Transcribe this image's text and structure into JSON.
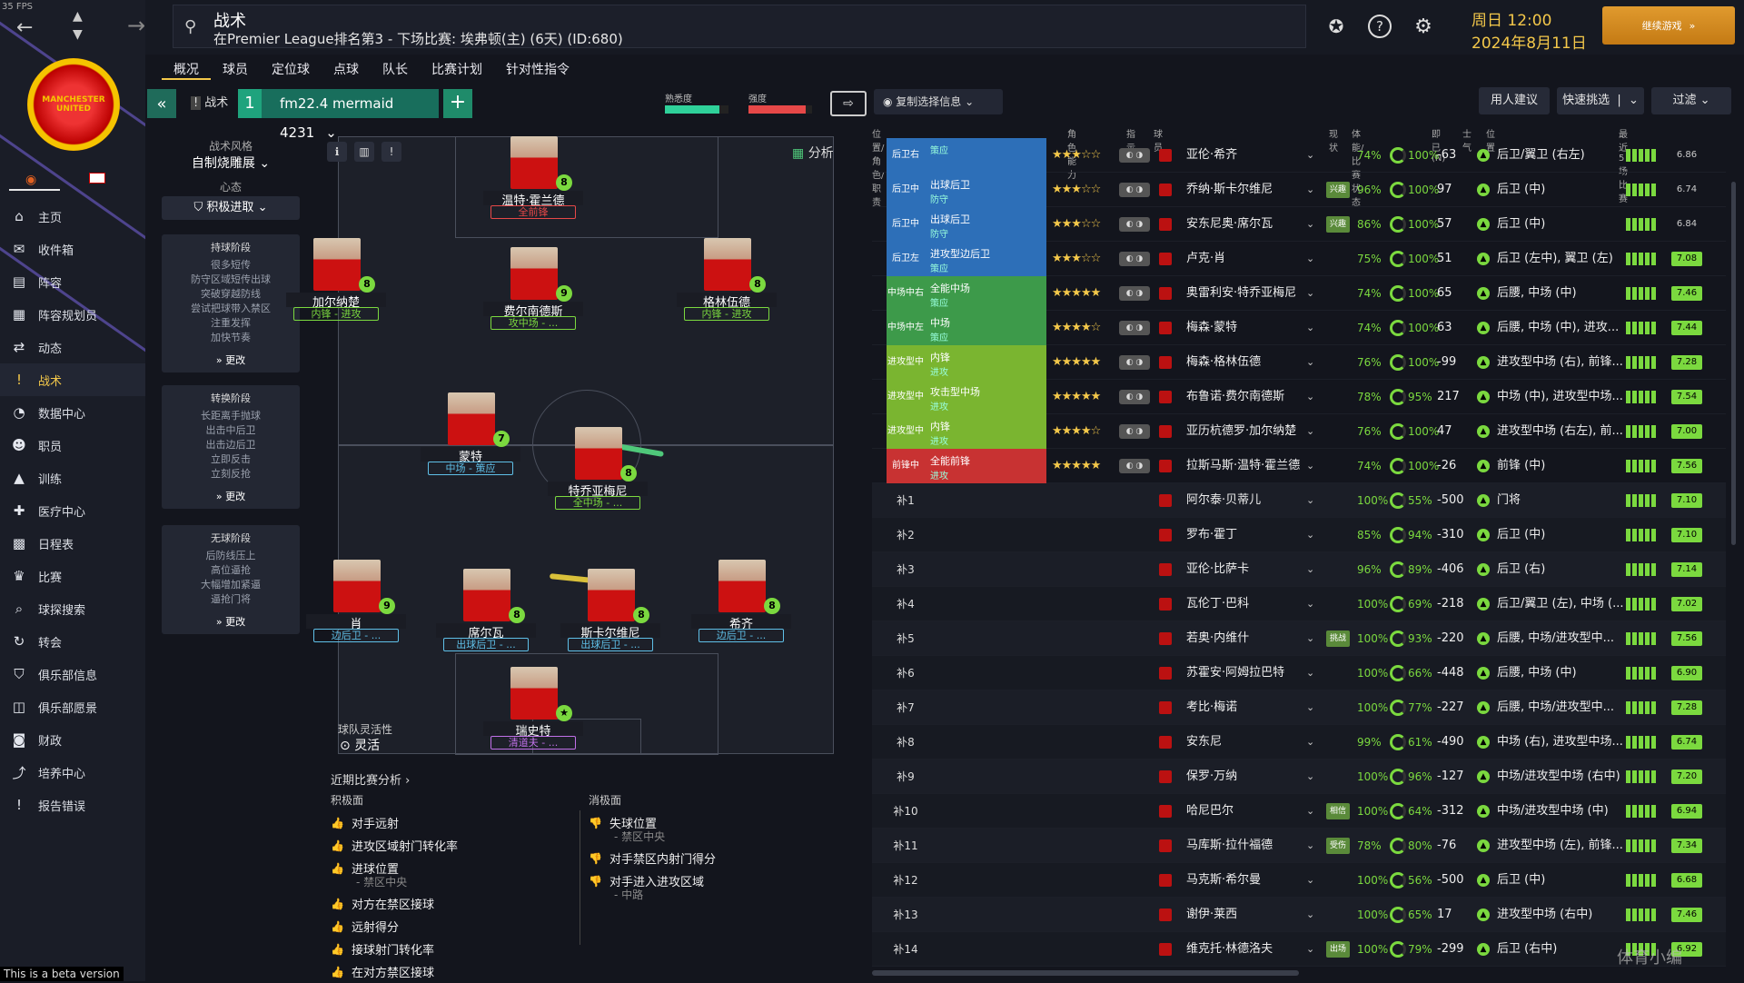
{
  "fps": "35 FPS",
  "beta": "This is a beta version",
  "sidebar": {
    "items": [
      {
        "label": "主页",
        "icon": "home-icon",
        "glyph": "⌂"
      },
      {
        "label": "收件箱",
        "icon": "inbox-icon",
        "glyph": "✉"
      },
      {
        "label": "阵容",
        "icon": "squad-icon",
        "glyph": "▤"
      },
      {
        "label": "阵容规划员",
        "icon": "planner-icon",
        "glyph": "▦"
      },
      {
        "label": "动态",
        "icon": "dynamics-icon",
        "glyph": "⇄"
      },
      {
        "label": "战术",
        "icon": "tactics-icon",
        "glyph": "!"
      },
      {
        "label": "数据中心",
        "icon": "data-icon",
        "glyph": "◔"
      },
      {
        "label": "职员",
        "icon": "staff-icon",
        "glyph": "☻"
      },
      {
        "label": "训练",
        "icon": "training-icon",
        "glyph": "▲"
      },
      {
        "label": "医疗中心",
        "icon": "medical-icon",
        "glyph": "✚"
      },
      {
        "label": "日程表",
        "icon": "calendar-icon",
        "glyph": "▩"
      },
      {
        "label": "比赛",
        "icon": "trophy-icon",
        "glyph": "♛"
      },
      {
        "label": "球探搜索",
        "icon": "scout-icon",
        "glyph": "⌕"
      },
      {
        "label": "转会",
        "icon": "transfer-icon",
        "glyph": "↻"
      },
      {
        "label": "俱乐部信息",
        "icon": "club-info-icon",
        "glyph": "⛉"
      },
      {
        "label": "俱乐部愿景",
        "icon": "vision-icon",
        "glyph": "◫"
      },
      {
        "label": "财政",
        "icon": "finance-icon",
        "glyph": "◙"
      },
      {
        "label": "培养中心",
        "icon": "development-icon",
        "glyph": "⤴"
      },
      {
        "label": "报告错误",
        "icon": "bug-icon",
        "glyph": "!"
      }
    ],
    "crest": "MANCHESTER UNITED"
  },
  "topbar": {
    "title": "战术",
    "subtitle": "在Premier League排名第3 - 下场比赛: 埃弗顿(主) (6天) (ID:680)",
    "day_time": "周日 12:00",
    "date": "2024年8月11日",
    "continue": "继续游戏"
  },
  "tabs": [
    "概况",
    "球员",
    "定位球",
    "点球",
    "队长",
    "比赛计划",
    "针对性指令"
  ],
  "toolbar": {
    "tactic_label": "战术",
    "slot": "1",
    "tactic_name": "fm22.4 mermaid 4231",
    "familiarity_label": "熟悉度",
    "familiarity_value": 0.85,
    "intensity_label": "强度",
    "intensity_value": 0.9,
    "copy": "复制选择信息",
    "advice": "用人建议",
    "quick": "快速挑选",
    "filter": "过滤"
  },
  "tactic_panel": {
    "style_label": "战术风格",
    "style_value": "自制烧雕展",
    "mentality_label": "心态",
    "mentality_value": "积极进取",
    "phases": [
      {
        "title": "持球阶段",
        "items": [
          "很多短传",
          "防守区域短传出球",
          "突破穿越防线",
          "尝试把球带入禁区",
          "注重发挥",
          "加快节奏"
        ],
        "more": "更改"
      },
      {
        "title": "转换阶段",
        "items": [
          "长距离手抛球",
          "出击中后卫",
          "出击边后卫",
          "立即反击",
          "立刻反抢"
        ],
        "more": "更改"
      },
      {
        "title": "无球阶段",
        "items": [
          "后防线压上",
          "高位逼抢",
          "大幅增加紧逼",
          "逼抢门将"
        ],
        "more": "更改"
      }
    ]
  },
  "pitch": {
    "analysis": "分析",
    "flex_label": "球队灵活性",
    "flex_value": "灵活",
    "players": [
      {
        "name": "温特·霍兰德",
        "role": "全前锋",
        "rating": "8",
        "color": "#e64848"
      },
      {
        "name": "加尔纳楚",
        "role": "内锋 - 进攻",
        "rating": "8",
        "color": "#7bd93f"
      },
      {
        "name": "费尔南德斯",
        "role": "攻中场 - ...",
        "rating": "9",
        "color": "#7bd93f"
      },
      {
        "name": "格林伍德",
        "role": "内锋 - 进攻",
        "rating": "8",
        "color": "#7bd93f"
      },
      {
        "name": "蒙特",
        "role": "中场 - 策应",
        "rating": "7",
        "color": "#5fc0e8"
      },
      {
        "name": "特乔亚梅尼",
        "role": "全中场 - ...",
        "rating": "8",
        "color": "#7bd93f"
      },
      {
        "name": "肖",
        "role": "边后卫 - ...",
        "rating": "9",
        "color": "#5fc0e8"
      },
      {
        "name": "席尔瓦",
        "role": "出球后卫 - ...",
        "rating": "8",
        "color": "#5fc0e8"
      },
      {
        "name": "斯卡尔维尼",
        "role": "出球后卫 - ...",
        "rating": "8",
        "color": "#5fc0e8"
      },
      {
        "name": "希齐",
        "role": "边后卫 - ...",
        "rating": "8",
        "color": "#5fc0e8"
      },
      {
        "name": "瑞史特",
        "role": "清道夫 - ...",
        "rating": "★",
        "color": "#c070e8"
      }
    ]
  },
  "analysis": {
    "title": "近期比赛分析",
    "positive_label": "积极面",
    "negative_label": "消极面",
    "positive": [
      {
        "t": "对手远射",
        "s": ""
      },
      {
        "t": "进攻区域射门转化率",
        "s": ""
      },
      {
        "t": "进球位置",
        "s": "- 禁区中央"
      },
      {
        "t": "对方在禁区接球",
        "s": ""
      },
      {
        "t": "远射得分",
        "s": ""
      },
      {
        "t": "接球射门转化率",
        "s": ""
      },
      {
        "t": "在对方禁区接球",
        "s": ""
      }
    ],
    "negative": [
      {
        "t": "失球位置",
        "s": "- 禁区中央"
      },
      {
        "t": "对手禁区内射门得分",
        "s": ""
      },
      {
        "t": "对手进入进攻区域",
        "s": "- 中路"
      }
    ]
  },
  "table": {
    "headers": {
      "pos": "位置/角色/职责",
      "ability": "角色能力",
      "instr": "指示",
      "player": "球员",
      "status": "现状",
      "cond": "体能/比赛状态",
      "exp": "即已(N)",
      "morale": "士气",
      "best": "位置",
      "form": "最近5场比赛"
    },
    "starters": [
      {
        "pos": "后卫右",
        "role": "",
        "duty": "策应",
        "stars": "★★★☆☆",
        "name": "亚伦·希齐",
        "badge": "",
        "cond": "74%",
        "fit": "100%",
        "exp": "-63",
        "best": "后卫/翼卫 (右左)",
        "avg": "6.86",
        "avgc": "g",
        "color": "#2d6fb8"
      },
      {
        "pos": "后卫中",
        "role": "出球后卫",
        "duty": "防守",
        "stars": "★★★☆☆",
        "name": "乔纳·斯卡尔维尼",
        "badge": "兴趣",
        "cond": "96%",
        "fit": "100%",
        "exp": "97",
        "best": "后卫 (中)",
        "avg": "6.74",
        "avgc": "g",
        "color": "#2d6fb8"
      },
      {
        "pos": "后卫中",
        "role": "出球后卫",
        "duty": "防守",
        "stars": "★★★☆☆",
        "name": "安东尼奥·席尔瓦",
        "badge": "兴趣",
        "cond": "86%",
        "fit": "100%",
        "exp": "57",
        "best": "后卫 (中)",
        "avg": "6.84",
        "avgc": "g",
        "color": "#2d6fb8"
      },
      {
        "pos": "后卫左",
        "role": "进攻型边后卫",
        "duty": "策应",
        "stars": "★★★☆☆",
        "name": "卢克·肖",
        "badge": "",
        "cond": "75%",
        "fit": "100%",
        "exp": "51",
        "best": "后卫 (左中), 翼卫 (左)",
        "avg": "7.08",
        "avgc": "y",
        "color": "#2d6fb8"
      },
      {
        "pos": "中场中右",
        "role": "全能中场",
        "duty": "策应",
        "stars": "★★★★★",
        "name": "奥雷利安·特乔亚梅尼",
        "badge": "",
        "cond": "74%",
        "fit": "100%",
        "exp": "65",
        "best": "后腰, 中场 (中)",
        "avg": "7.46",
        "avgc": "y",
        "color": "#3d9a4a"
      },
      {
        "pos": "中场中左",
        "role": "中场",
        "duty": "策应",
        "stars": "★★★★☆",
        "name": "梅森·蒙特",
        "badge": "",
        "cond": "74%",
        "fit": "100%",
        "exp": "63",
        "best": "后腰, 中场 (中), 进攻...",
        "avg": "7.44",
        "avgc": "y",
        "color": "#3d9a4a"
      },
      {
        "pos": "进攻型中场右",
        "role": "内锋",
        "duty": "进攻",
        "stars": "★★★★★",
        "name": "梅森·格林伍德",
        "badge": "",
        "cond": "76%",
        "fit": "100%",
        "exp": "-99",
        "best": "进攻型中场 (右), 前锋...",
        "avg": "7.28",
        "avgc": "y",
        "color": "#7ab530"
      },
      {
        "pos": "进攻型中场中",
        "role": "攻击型中场",
        "duty": "进攻",
        "stars": "★★★★★",
        "name": "布鲁诺·费尔南德斯",
        "badge": "",
        "cond": "78%",
        "fit": "95%",
        "exp": "217",
        "best": "中场 (中), 进攻型中场...",
        "avg": "7.54",
        "avgc": "y",
        "color": "#7ab530"
      },
      {
        "pos": "进攻型中场左",
        "role": "内锋",
        "duty": "进攻",
        "stars": "★★★★☆",
        "name": "亚历杭德罗·加尔纳楚",
        "badge": "",
        "cond": "76%",
        "fit": "100%",
        "exp": "47",
        "best": "进攻型中场 (右左), 前...",
        "avg": "7.00",
        "avgc": "y",
        "color": "#7ab530"
      },
      {
        "pos": "前锋中",
        "role": "全能前锋",
        "duty": "进攻",
        "stars": "★★★★★",
        "name": "拉斯马斯·温特·霍兰德",
        "badge": "",
        "cond": "74%",
        "fit": "100%",
        "exp": "-26",
        "best": "前锋 (中)",
        "avg": "7.56",
        "avgc": "y",
        "color": "#c83232"
      }
    ],
    "subs": [
      {
        "pos": "补1",
        "name": "阿尔泰·贝蒂儿",
        "badge": "",
        "cond": "100%",
        "fit": "55%",
        "exp": "-500",
        "best": "门将",
        "avg": "7.10"
      },
      {
        "pos": "补2",
        "name": "罗布·霍丁",
        "badge": "",
        "cond": "85%",
        "fit": "94%",
        "exp": "-310",
        "best": "后卫 (中)",
        "avg": "7.10"
      },
      {
        "pos": "补3",
        "name": "亚伦·比萨卡",
        "badge": "",
        "cond": "96%",
        "fit": "89%",
        "exp": "-406",
        "best": "后卫 (右)",
        "avg": "7.14"
      },
      {
        "pos": "补4",
        "name": "瓦伦丁·巴科",
        "badge": "",
        "cond": "100%",
        "fit": "69%",
        "exp": "-218",
        "best": "后卫/翼卫 (左), 中场 (...",
        "avg": "7.02"
      },
      {
        "pos": "补5",
        "name": "若奥·内维什",
        "badge": "挑战",
        "cond": "100%",
        "fit": "93%",
        "exp": "-220",
        "best": "后腰, 中场/进攻型中...",
        "avg": "7.56"
      },
      {
        "pos": "补6",
        "name": "苏霍安·阿姆拉巴特",
        "badge": "",
        "cond": "100%",
        "fit": "66%",
        "exp": "-448",
        "best": "后腰, 中场 (中)",
        "avg": "6.90"
      },
      {
        "pos": "补7",
        "name": "考比·梅诺",
        "badge": "",
        "cond": "100%",
        "fit": "77%",
        "exp": "-227",
        "best": "后腰, 中场/进攻型中...",
        "avg": "7.28"
      },
      {
        "pos": "补8",
        "name": "安东尼",
        "badge": "",
        "cond": "99%",
        "fit": "61%",
        "exp": "-490",
        "best": "中场 (右), 进攻型中场...",
        "avg": "6.74"
      },
      {
        "pos": "补9",
        "name": "保罗·万纳",
        "badge": "",
        "cond": "100%",
        "fit": "96%",
        "exp": "-127",
        "best": "中场/进攻型中场 (右中)",
        "avg": "7.20"
      },
      {
        "pos": "补10",
        "name": "哈尼巴尔",
        "badge": "相信",
        "cond": "100%",
        "fit": "64%",
        "exp": "-312",
        "best": "中场/进攻型中场 (中)",
        "avg": "6.94"
      },
      {
        "pos": "补11",
        "name": "马库斯·拉什福德",
        "badge": "受伤",
        "cond": "78%",
        "fit": "80%",
        "exp": "-76",
        "best": "进攻型中场 (左), 前锋...",
        "avg": "7.34"
      },
      {
        "pos": "补12",
        "name": "马克斯·希尔曼",
        "badge": "",
        "cond": "100%",
        "fit": "56%",
        "exp": "-500",
        "best": "后卫 (中)",
        "avg": "6.68"
      },
      {
        "pos": "补13",
        "name": "谢伊·莱西",
        "badge": "",
        "cond": "100%",
        "fit": "65%",
        "exp": "17",
        "best": "进攻型中场 (右中)",
        "avg": "7.46"
      },
      {
        "pos": "补14",
        "name": "维克托·林德洛夫",
        "badge": "出场",
        "cond": "100%",
        "fit": "79%",
        "exp": "-299",
        "best": "后卫 (右中)",
        "avg": "6.92"
      }
    ]
  },
  "watermark": "体育小编"
}
